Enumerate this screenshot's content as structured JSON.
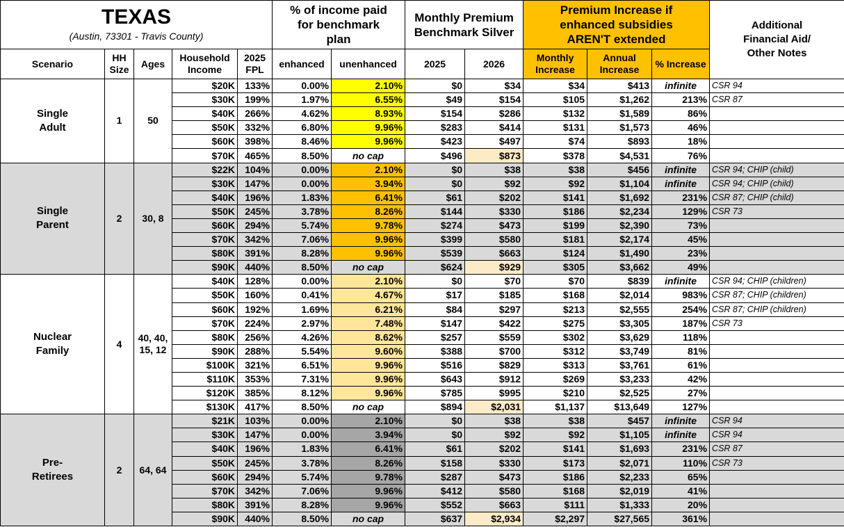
{
  "header": {
    "title": "TEXAS",
    "subtitle": "(Austin, 73301 - Travis County)",
    "groups": [
      "% of income paid for benchmark plan",
      "Monthly Premium Benchmark Silver",
      "Premium Increase if enhanced subsidies AREN'T extended",
      "Additional Financial Aid/ Other Notes"
    ],
    "columns": [
      "Scenario",
      "HH Size",
      "Ages",
      "Household Income",
      "2025 FPL",
      "enhanced",
      "unenhanced",
      "2025",
      "2026",
      "Monthly Increase",
      "Annual Increase",
      "% Increase"
    ],
    "increase_color": "#ffc000"
  },
  "table": {
    "last_row_2026_color": "#fdebc8",
    "groups": [
      {
        "scenario": "Single Adult",
        "hh_size": "1",
        "ages": "50",
        "row_color": "#ffffff",
        "rate_color": "#ffff00",
        "rows": [
          [
            "$20K",
            "133%",
            "0.00%",
            "2.10%",
            "$0",
            "$34",
            "$34",
            "$413",
            "infinite",
            "CSR 94"
          ],
          [
            "$30K",
            "199%",
            "1.97%",
            "6.55%",
            "$49",
            "$154",
            "$105",
            "$1,262",
            "213%",
            "CSR 87"
          ],
          [
            "$40K",
            "266%",
            "4.62%",
            "8.93%",
            "$154",
            "$286",
            "$132",
            "$1,589",
            "86%",
            null
          ],
          [
            "$50K",
            "332%",
            "6.80%",
            "9.96%",
            "$283",
            "$414",
            "$131",
            "$1,573",
            "46%",
            null
          ],
          [
            "$60K",
            "398%",
            "8.46%",
            "9.96%",
            "$423",
            "$497",
            "$74",
            "$893",
            "18%",
            null
          ],
          [
            "$70K",
            "465%",
            "8.50%",
            "no cap",
            "$496",
            "$873",
            "$378",
            "$4,531",
            "76%",
            null
          ]
        ]
      },
      {
        "scenario": "Single Parent",
        "hh_size": "2",
        "ages": "30, 8",
        "row_color": "#d9d9d9",
        "rate_color": "#ffc000",
        "rows": [
          [
            "$22K",
            "104%",
            "0.00%",
            "2.10%",
            "$0",
            "$38",
            "$38",
            "$456",
            "infinite",
            "CSR 94; CHIP (child)"
          ],
          [
            "$30K",
            "147%",
            "0.00%",
            "3.94%",
            "$0",
            "$92",
            "$92",
            "$1,104",
            "infinite",
            "CSR 94; CHIP (child)"
          ],
          [
            "$40K",
            "196%",
            "1.83%",
            "6.41%",
            "$61",
            "$202",
            "$141",
            "$1,692",
            "231%",
            "CSR 87; CHIP (child)"
          ],
          [
            "$50K",
            "245%",
            "3.78%",
            "8.26%",
            "$144",
            "$330",
            "$186",
            "$2,234",
            "129%",
            "CSR 73"
          ],
          [
            "$60K",
            "294%",
            "5.74%",
            "9.78%",
            "$274",
            "$473",
            "$199",
            "$2,390",
            "73%",
            null
          ],
          [
            "$70K",
            "342%",
            "7.06%",
            "9.96%",
            "$399",
            "$580",
            "$181",
            "$2,174",
            "45%",
            null
          ],
          [
            "$80K",
            "391%",
            "8.28%",
            "9.96%",
            "$539",
            "$663",
            "$124",
            "$1,490",
            "23%",
            null
          ],
          [
            "$90K",
            "440%",
            "8.50%",
            "no cap",
            "$624",
            "$929",
            "$305",
            "$3,662",
            "49%",
            null
          ]
        ]
      },
      {
        "scenario": "Nuclear Family",
        "hh_size": "4",
        "ages": "40, 40, 15, 12",
        "row_color": "#ffffff",
        "rate_color": "#ffe699",
        "rows": [
          [
            "$40K",
            "128%",
            "0.00%",
            "2.10%",
            "$0",
            "$70",
            "$70",
            "$839",
            "infinite",
            "CSR 94; CHIP (children)"
          ],
          [
            "$50K",
            "160%",
            "0.41%",
            "4.67%",
            "$17",
            "$185",
            "$168",
            "$2,014",
            "983%",
            "CSR 87; CHIP (children)"
          ],
          [
            "$60K",
            "192%",
            "1.69%",
            "6.21%",
            "$84",
            "$297",
            "$213",
            "$2,555",
            "254%",
            "CSR 87; CHIP (children)"
          ],
          [
            "$70K",
            "224%",
            "2.97%",
            "7.48%",
            "$147",
            "$422",
            "$275",
            "$3,305",
            "187%",
            "CSR 73"
          ],
          [
            "$80K",
            "256%",
            "4.26%",
            "8.62%",
            "$257",
            "$559",
            "$302",
            "$3,629",
            "118%",
            null
          ],
          [
            "$90K",
            "288%",
            "5.54%",
            "9.60%",
            "$388",
            "$700",
            "$312",
            "$3,749",
            "81%",
            null
          ],
          [
            "$100K",
            "321%",
            "6.51%",
            "9.96%",
            "$516",
            "$829",
            "$313",
            "$3,761",
            "61%",
            null
          ],
          [
            "$110K",
            "353%",
            "7.31%",
            "9.96%",
            "$643",
            "$912",
            "$269",
            "$3,233",
            "42%",
            null
          ],
          [
            "$120K",
            "385%",
            "8.12%",
            "9.96%",
            "$785",
            "$995",
            "$210",
            "$2,525",
            "27%",
            null
          ],
          [
            "$130K",
            "417%",
            "8.50%",
            "no cap",
            "$894",
            "$2,031",
            "$1,137",
            "$13,649",
            "127%",
            null
          ]
        ]
      },
      {
        "scenario": "Pre-Retirees",
        "hh_size": "2",
        "ages": "64, 64",
        "row_color": "#d9d9d9",
        "rate_color": "#a6a6a6",
        "rows": [
          [
            "$21K",
            "103%",
            "0.00%",
            "2.10%",
            "$0",
            "$38",
            "$38",
            "$457",
            "infinite",
            "CSR 94"
          ],
          [
            "$30K",
            "147%",
            "0.00%",
            "3.94%",
            "$0",
            "$92",
            "$92",
            "$1,105",
            "infinite",
            "CSR 94"
          ],
          [
            "$40K",
            "196%",
            "1.83%",
            "6.41%",
            "$61",
            "$202",
            "$141",
            "$1,693",
            "231%",
            "CSR 87"
          ],
          [
            "$50K",
            "245%",
            "3.78%",
            "8.26%",
            "$158",
            "$330",
            "$173",
            "$2,071",
            "110%",
            "CSR 73"
          ],
          [
            "$60K",
            "294%",
            "5.74%",
            "9.78%",
            "$287",
            "$473",
            "$186",
            "$2,233",
            "65%",
            null
          ],
          [
            "$70K",
            "342%",
            "7.06%",
            "9.96%",
            "$412",
            "$580",
            "$168",
            "$2,019",
            "41%",
            null
          ],
          [
            "$80K",
            "391%",
            "8.28%",
            "9.96%",
            "$552",
            "$663",
            "$111",
            "$1,333",
            "20%",
            null
          ],
          [
            "$90K",
            "440%",
            "8.50%",
            "no cap",
            "$637",
            "$2,934",
            "$2,297",
            "$27,565",
            "361%",
            null
          ]
        ]
      }
    ]
  }
}
